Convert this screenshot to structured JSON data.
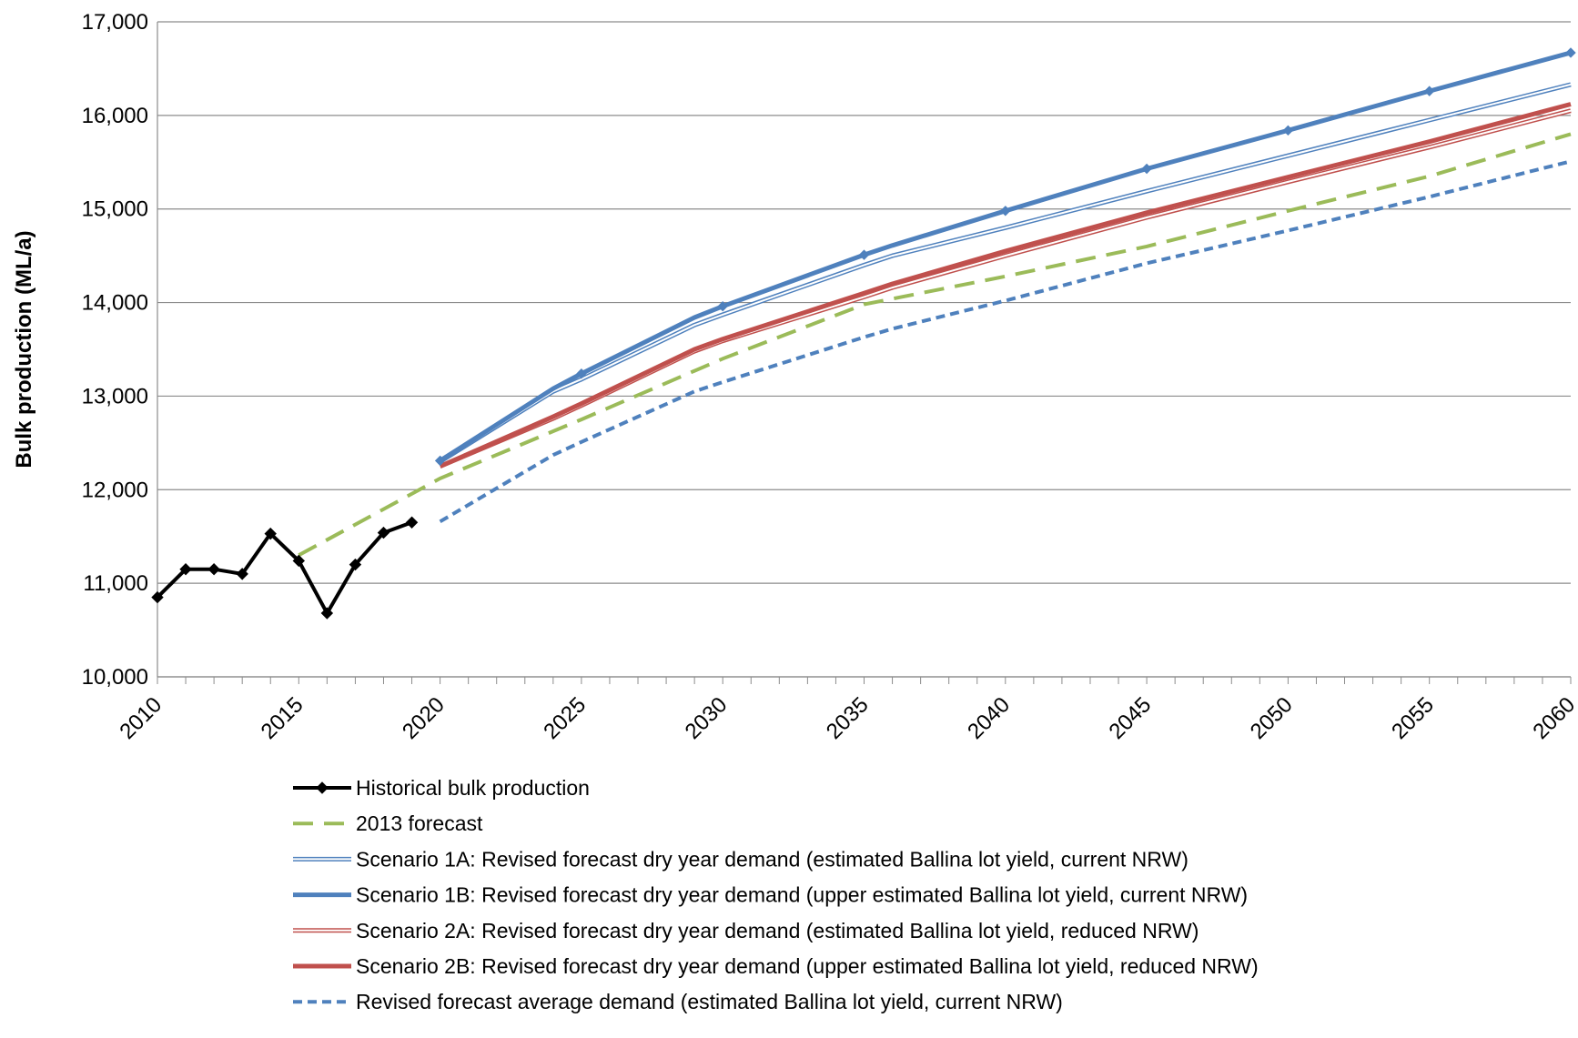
{
  "chart_data": {
    "type": "line",
    "title": "",
    "xlabel": "",
    "ylabel": "Bulk production (ML/a)",
    "xlim": [
      2010,
      2060
    ],
    "ylim": [
      10000,
      17000
    ],
    "x_ticks": [
      2010,
      2015,
      2020,
      2025,
      2030,
      2035,
      2040,
      2045,
      2050,
      2055,
      2060
    ],
    "y_ticks": [
      10000,
      11000,
      12000,
      13000,
      14000,
      15000,
      16000,
      17000
    ],
    "y_tick_labels": [
      "10,000",
      "11,000",
      "12,000",
      "13,000",
      "14,000",
      "15,000",
      "16,000",
      "17,000"
    ],
    "grid": "horizontal",
    "legend_position": "bottom",
    "series": [
      {
        "name": "Historical bulk production",
        "style": "solid-markers",
        "color": "#000000",
        "points": [
          [
            2010,
            10850
          ],
          [
            2011,
            11150
          ],
          [
            2012,
            11150
          ],
          [
            2013,
            11100
          ],
          [
            2014,
            11530
          ],
          [
            2015,
            11240
          ],
          [
            2016,
            10680
          ],
          [
            2017,
            11200
          ],
          [
            2018,
            11540
          ],
          [
            2019,
            11650
          ]
        ]
      },
      {
        "name": "2013 forecast",
        "style": "long-dash",
        "color": "#9BBB59",
        "points": [
          [
            2015,
            11300
          ],
          [
            2020,
            12120
          ],
          [
            2025,
            12750
          ],
          [
            2030,
            13400
          ],
          [
            2035,
            13980
          ],
          [
            2040,
            14280
          ],
          [
            2045,
            14600
          ],
          [
            2050,
            14980
          ],
          [
            2055,
            15350
          ],
          [
            2060,
            15800
          ]
        ]
      },
      {
        "name": "Scenario 1A: Revised forecast dry year demand (estimated Ballina lot yield, current NRW)",
        "style": "double-line",
        "color": "#4F81BD",
        "points": [
          [
            2020,
            12300
          ],
          [
            2024,
            13050
          ],
          [
            2025,
            13180
          ],
          [
            2029,
            13760
          ],
          [
            2030,
            13870
          ],
          [
            2035,
            14400
          ],
          [
            2036,
            14500
          ],
          [
            2040,
            14800
          ],
          [
            2045,
            15190
          ],
          [
            2050,
            15570
          ],
          [
            2055,
            15950
          ],
          [
            2060,
            16330
          ]
        ]
      },
      {
        "name": "Scenario 1B: Revised forecast dry year demand (upper estimated Ballina lot yield, current NRW)",
        "style": "thick-solid",
        "color": "#4F81BD",
        "points": [
          [
            2020,
            12310
          ],
          [
            2024,
            13080
          ],
          [
            2025,
            13240
          ],
          [
            2029,
            13840
          ],
          [
            2030,
            13960
          ],
          [
            2035,
            14510
          ],
          [
            2036,
            14610
          ],
          [
            2040,
            14980
          ],
          [
            2045,
            15430
          ],
          [
            2050,
            15840
          ],
          [
            2055,
            16260
          ],
          [
            2060,
            16670
          ]
        ]
      },
      {
        "name": "Scenario 2A: Revised forecast dry year demand (estimated Ballina lot yield, reduced NRW)",
        "style": "double-line",
        "color": "#C0504D",
        "points": [
          [
            2020,
            12250
          ],
          [
            2024,
            12760
          ],
          [
            2025,
            12900
          ],
          [
            2029,
            13480
          ],
          [
            2030,
            13590
          ],
          [
            2035,
            14060
          ],
          [
            2036,
            14160
          ],
          [
            2040,
            14500
          ],
          [
            2045,
            14910
          ],
          [
            2050,
            15290
          ],
          [
            2055,
            15660
          ],
          [
            2060,
            16050
          ]
        ]
      },
      {
        "name": "Scenario 2B: Revised forecast dry year demand (upper estimated Ballina lot yield, reduced NRW)",
        "style": "thick-solid",
        "color": "#C0504D",
        "points": [
          [
            2020,
            12250
          ],
          [
            2024,
            12780
          ],
          [
            2025,
            12920
          ],
          [
            2029,
            13500
          ],
          [
            2030,
            13610
          ],
          [
            2035,
            14100
          ],
          [
            2036,
            14200
          ],
          [
            2040,
            14550
          ],
          [
            2045,
            14960
          ],
          [
            2050,
            15340
          ],
          [
            2055,
            15720
          ],
          [
            2060,
            16120
          ]
        ]
      },
      {
        "name": "Revised forecast average demand (estimated Ballina lot yield, current NRW)",
        "style": "short-dash",
        "color": "#4F81BD",
        "points": [
          [
            2020,
            11660
          ],
          [
            2024,
            12370
          ],
          [
            2025,
            12510
          ],
          [
            2029,
            13050
          ],
          [
            2030,
            13150
          ],
          [
            2035,
            13630
          ],
          [
            2036,
            13720
          ],
          [
            2040,
            14020
          ],
          [
            2045,
            14420
          ],
          [
            2050,
            14770
          ],
          [
            2055,
            15130
          ],
          [
            2060,
            15510
          ]
        ]
      }
    ]
  }
}
